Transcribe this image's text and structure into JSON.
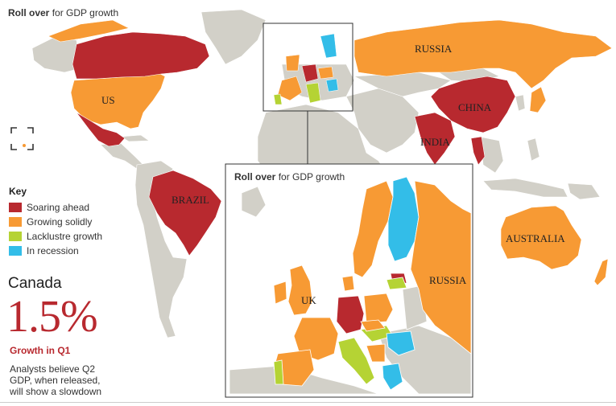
{
  "header": {
    "rollover_bold": "Roll over",
    "rollover_rest": " for GDP growth"
  },
  "inset": {
    "title_bold": "Roll over",
    "title_rest": " for GDP growth"
  },
  "key": {
    "title": "Key",
    "items": [
      {
        "label": "Soaring ahead",
        "color": "#b8292f"
      },
      {
        "label": "Growing solidly",
        "color": "#f79a34"
      },
      {
        "label": "Lacklustre growth",
        "color": "#b5d334"
      },
      {
        "label": "In recession",
        "color": "#33bde8"
      }
    ]
  },
  "selected": {
    "country": "Canada",
    "value": "1.5%",
    "metric": "Growth in Q1",
    "note": "Analysts believe Q2 GDP, when released, will show a slowdown"
  },
  "labels": {
    "russia": "RUSSIA",
    "us": "US",
    "china": "CHINA",
    "india": "INDIA",
    "brazil": "BRAZIL",
    "australia": "AUSTRALIA",
    "inset_uk": "UK",
    "inset_russia": "RUSSIA"
  },
  "colors": {
    "land": "#d2d0c8",
    "soaring": "#b8292f",
    "growing": "#f79a34",
    "lacklustre": "#b5d334",
    "recession": "#33bde8"
  },
  "icons": {
    "expand": "expand-icon"
  }
}
